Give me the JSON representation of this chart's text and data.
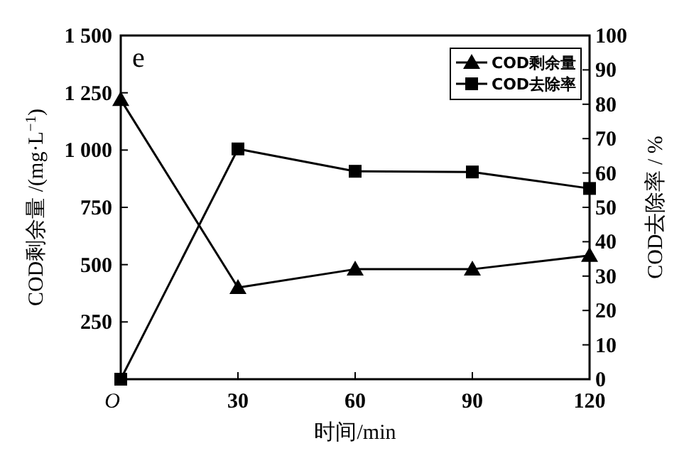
{
  "chart_data": {
    "type": "line",
    "xlabel": "时间/min",
    "ylabel": "COD剩余量 /(mg·L$^{−1}$)",
    "y2label": "COD去除率 / %",
    "annotations": [
      "e"
    ],
    "x": [
      0,
      30,
      60,
      90,
      120
    ],
    "xlim": [
      0,
      120
    ],
    "xticks": [
      {
        "value": 0,
        "label": "O"
      },
      30,
      60,
      90,
      120
    ],
    "ylim": [
      0,
      1500
    ],
    "yticks": [
      {
        "value": 0,
        "label": null
      },
      250,
      500,
      750,
      {
        "value": 1000,
        "label": "1 000"
      },
      {
        "value": 1250,
        "label": "1 250"
      },
      {
        "value": 1500,
        "label": "1 500"
      }
    ],
    "y2lim": [
      0,
      100
    ],
    "y2ticks": [
      0,
      10,
      20,
      30,
      40,
      50,
      60,
      70,
      80,
      90,
      100
    ],
    "legend": "top right",
    "grid": false,
    "line_style": "solid",
    "series": [
      {
        "name": "COD剩余量",
        "color": "#000000",
        "marker": "triangle",
        "values": [
          1220,
          400,
          480,
          480,
          540
        ]
      },
      {
        "name": "COD去除率",
        "color": "#000000",
        "marker": "square",
        "axis": "y2",
        "values": [
          0,
          67,
          60.5,
          60.3,
          55.5
        ]
      }
    ]
  }
}
